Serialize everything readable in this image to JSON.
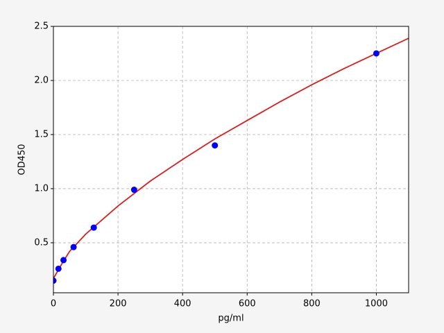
{
  "chart_data": {
    "type": "scatter",
    "xlabel": "pg/ml",
    "ylabel": "OD450",
    "xlim": [
      0,
      1100
    ],
    "ylim": [
      0.038,
      2.5
    ],
    "xticks": [
      0,
      200,
      400,
      600,
      800,
      1000
    ],
    "yticks": [
      0.5,
      {
        "value": 1,
        "label": "1.0"
      },
      1.5,
      {
        "value": 2,
        "label": "2.0"
      },
      2.5
    ],
    "grid": true,
    "series": [
      {
        "color": "#0000ff",
        "x": [
          0,
          15.6,
          31.25,
          62.5,
          125,
          250,
          500,
          1000
        ],
        "values": [
          0.15,
          0.26,
          0.34,
          0.46,
          0.64,
          0.99,
          1.4,
          2.25
        ]
      },
      {
        "color": "#dd1c1c",
        "line": true,
        "x": [
          0,
          25,
          50,
          100,
          200,
          300,
          400,
          500,
          600,
          700,
          800,
          900,
          1000,
          1100
        ],
        "values": [
          0.17,
          0.3,
          0.42,
          0.58,
          0.84,
          1.07,
          1.27,
          1.46,
          1.63,
          1.8,
          1.96,
          2.11,
          2.25,
          2.39
        ]
      }
    ]
  }
}
